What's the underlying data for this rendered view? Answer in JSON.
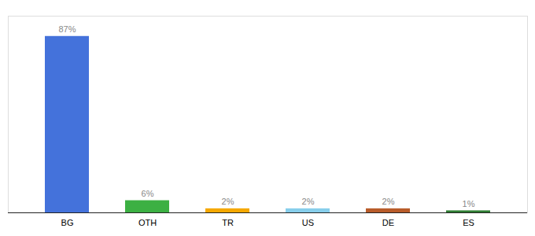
{
  "chart_data": {
    "type": "bar",
    "categories": [
      "BG",
      "OTH",
      "TR",
      "US",
      "DE",
      "ES"
    ],
    "values": [
      87,
      6,
      2,
      2,
      2,
      1
    ],
    "value_labels": [
      "87%",
      "6%",
      "2%",
      "2%",
      "2%",
      "1%"
    ],
    "colors": [
      "#4472db",
      "#3cb043",
      "#f5a800",
      "#87ceeb",
      "#b85c2a",
      "#2e7d32"
    ],
    "ylim": [
      0,
      97
    ],
    "data_labels": true,
    "tick_labels": "x",
    "grid": false
  }
}
